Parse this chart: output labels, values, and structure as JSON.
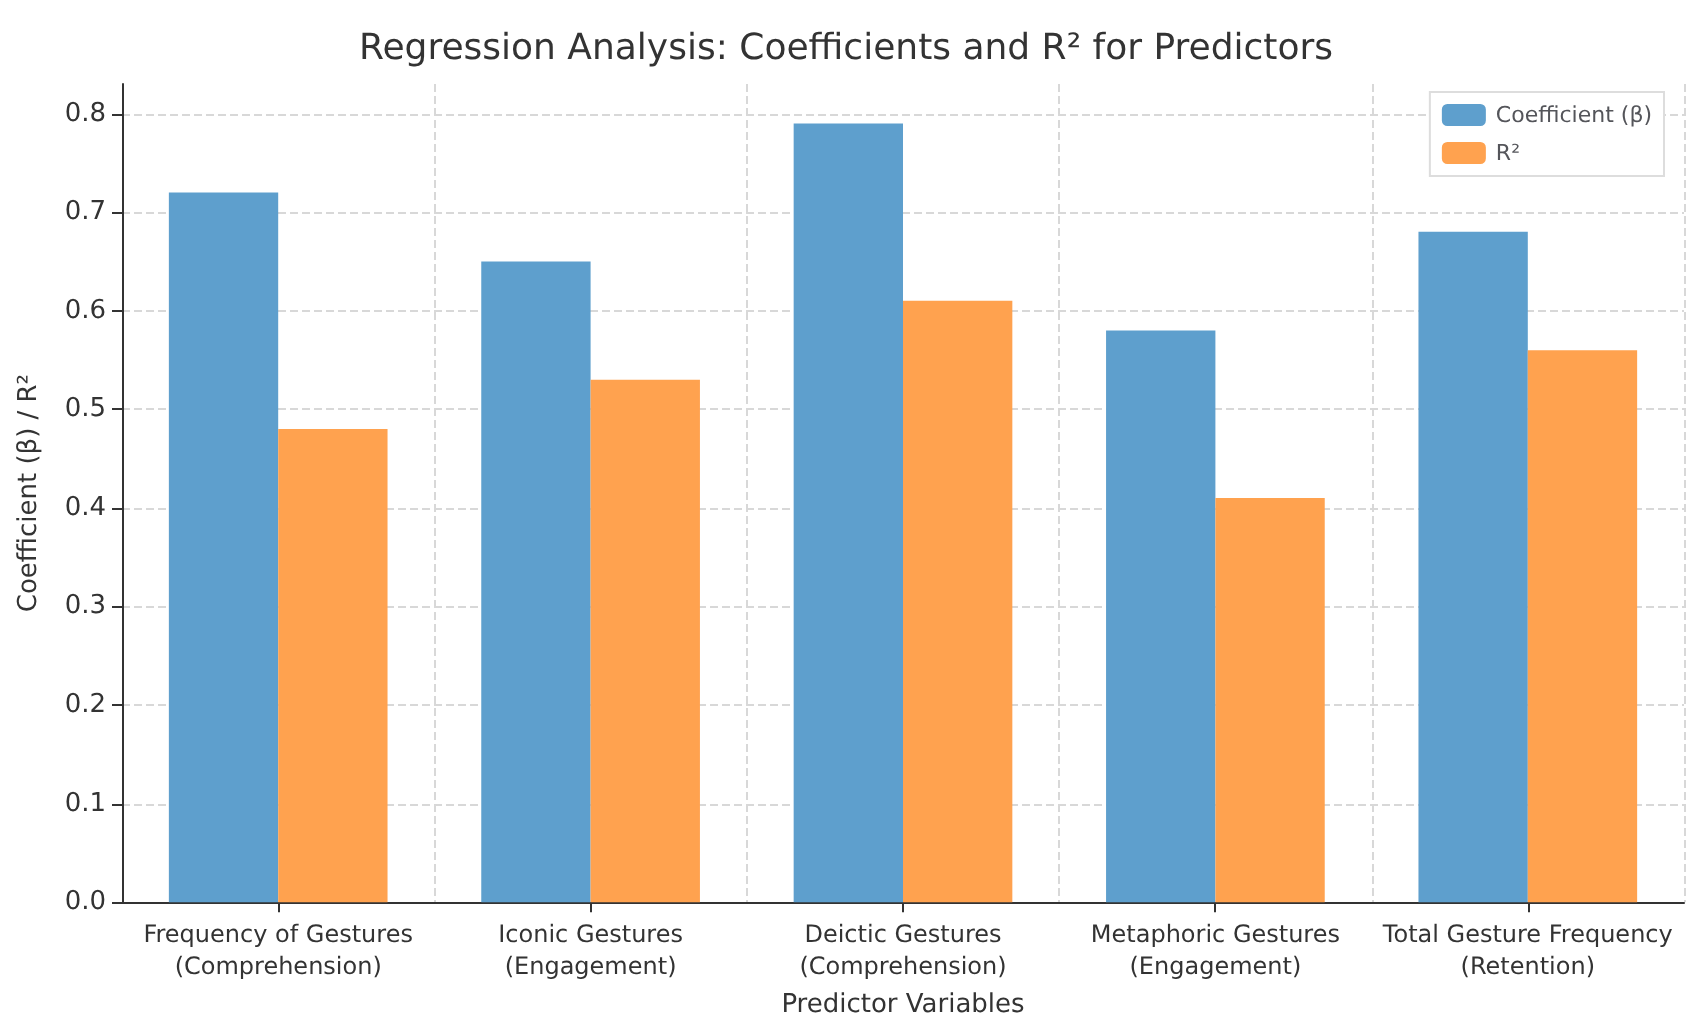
{
  "chart_data": {
    "type": "bar",
    "title": "Regression Analysis: Coefficients and R² for Predictors",
    "xlabel": "Predictor Variables",
    "ylabel": "Coefficient (β) / R²",
    "categories": [
      "Frequency of Gestures\n(Comprehension)",
      "Iconic Gestures\n(Engagement)",
      "Deictic Gestures\n(Comprehension)",
      "Metaphoric Gestures\n(Engagement)",
      "Total Gesture Frequency\n(Retention)"
    ],
    "series": [
      {
        "name": "Coefficient (β)",
        "color": "#5e9fcd",
        "values": [
          0.72,
          0.65,
          0.79,
          0.58,
          0.68
        ]
      },
      {
        "name": "R²",
        "color": "#ffa24f",
        "values": [
          0.48,
          0.53,
          0.61,
          0.41,
          0.56
        ]
      }
    ],
    "ylim": [
      0,
      0.83
    ],
    "yticks": [
      {
        "value": 0,
        "label": "0.0"
      },
      0.1,
      0.2,
      0.3,
      0.4,
      0.5,
      0.6,
      0.7,
      0.8
    ],
    "grid": true,
    "legend": "top right"
  }
}
